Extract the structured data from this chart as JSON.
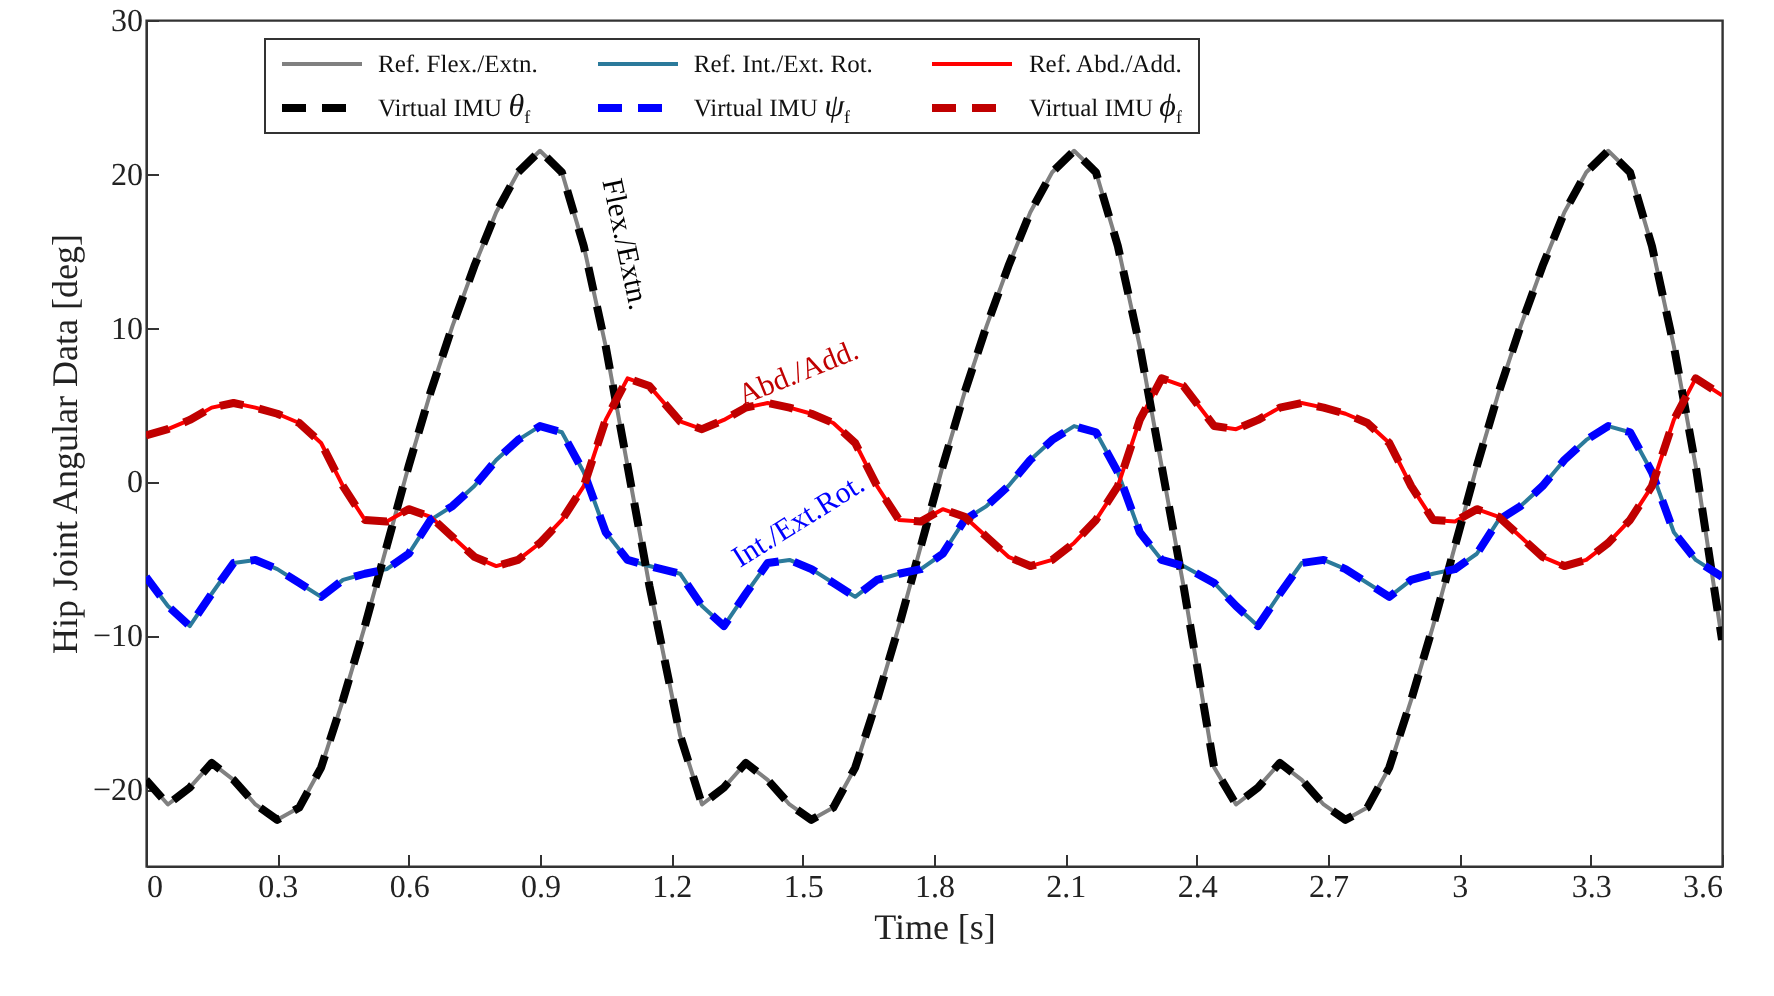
{
  "chart_data": {
    "type": "line",
    "xlabel": "Time [s]",
    "ylabel": "Hip Joint Angular Data [deg]",
    "x": [
      0,
      0.05,
      0.1,
      0.15,
      0.2,
      0.25,
      0.3,
      0.35,
      0.4,
      0.45,
      0.5,
      0.55,
      0.6,
      0.65,
      0.7,
      0.75,
      0.8,
      0.85,
      0.9,
      0.95,
      1.0,
      1.05,
      1.1,
      1.15,
      1.22,
      1.27,
      1.32,
      1.37,
      1.42,
      1.47,
      1.52,
      1.57,
      1.62,
      1.67,
      1.72,
      1.77,
      1.82,
      1.87,
      1.92,
      1.97,
      2.02,
      2.07,
      2.12,
      2.17,
      2.22,
      2.27,
      2.32,
      2.37,
      2.44,
      2.49,
      2.54,
      2.59,
      2.64,
      2.69,
      2.74,
      2.79,
      2.84,
      2.89,
      2.94,
      2.99,
      3.04,
      3.09,
      3.14,
      3.19,
      3.24,
      3.29,
      3.34,
      3.39,
      3.44,
      3.49,
      3.54,
      3.6
    ],
    "series": [
      {
        "name": "Ref. Flex./Extn.",
        "color": "#808080",
        "line_style": "solid",
        "values": [
          -19.4,
          -21,
          -19.9,
          -18.3,
          -19.4,
          -21,
          -22,
          -21.2,
          -18.6,
          -14.2,
          -9.4,
          -4.2,
          1.0,
          5.8,
          10.1,
          14,
          17.5,
          20.1,
          21.5,
          20.1,
          15.3,
          8.8,
          1.0,
          -6.8,
          -16.5,
          -21,
          -19.9,
          -18.3,
          -19.4,
          -21,
          -22,
          -21.2,
          -18.6,
          -14.2,
          -9.4,
          -4.2,
          1.0,
          5.8,
          10.1,
          14,
          17.5,
          20.1,
          21.5,
          20.1,
          15.3,
          8.8,
          1.0,
          -6.8,
          -18.6,
          -21,
          -19.9,
          -18.3,
          -19.4,
          -21,
          -22,
          -21.2,
          -18.6,
          -14.2,
          -9.4,
          -4.2,
          1.0,
          5.8,
          10.1,
          14,
          17.5,
          20.1,
          21.5,
          20.1,
          15.3,
          8.8,
          1.0,
          -10.3
        ]
      },
      {
        "name": "Ref. Int./Ext. Rot.",
        "color": "#2b7a9b",
        "line_style": "solid",
        "values": [
          -6.2,
          -8.1,
          -9.4,
          -7.3,
          -5.3,
          -5.1,
          -5.7,
          -6.6,
          -7.5,
          -6.4,
          -6.0,
          -5.7,
          -4.7,
          -2.5,
          -1.6,
          -0.3,
          1.4,
          2.7,
          3.6,
          3.2,
          0.6,
          -3.3,
          -5.1,
          -5.5,
          -6.0,
          -8.1,
          -9.4,
          -7.3,
          -5.3,
          -5.1,
          -5.7,
          -6.6,
          -7.5,
          -6.4,
          -6.0,
          -5.7,
          -4.7,
          -2.5,
          -1.6,
          -0.3,
          1.4,
          2.7,
          3.6,
          3.2,
          0.6,
          -3.3,
          -5.1,
          -5.5,
          -6.6,
          -8.1,
          -9.4,
          -7.3,
          -5.3,
          -5.1,
          -5.7,
          -6.6,
          -7.5,
          -6.4,
          -6.0,
          -5.7,
          -4.7,
          -2.5,
          -1.6,
          -0.3,
          1.4,
          2.7,
          3.6,
          3.2,
          0.6,
          -3.3,
          -5.1,
          -6.2
        ]
      },
      {
        "name": "Ref. Abd./Add.",
        "color": "#ff0000",
        "line_style": "solid",
        "values": [
          3.0,
          3.4,
          4.0,
          4.8,
          5.1,
          4.8,
          4.4,
          3.8,
          2.5,
          -0.3,
          -2.5,
          -2.6,
          -1.8,
          -2.3,
          -3.6,
          -4.9,
          -5.5,
          -5.1,
          -4.0,
          -2.5,
          -0.3,
          4.0,
          6.7,
          6.2,
          3.9,
          3.4,
          4.0,
          4.8,
          5.1,
          4.8,
          4.4,
          3.8,
          2.5,
          -0.3,
          -2.5,
          -2.6,
          -1.8,
          -2.3,
          -3.6,
          -4.9,
          -5.5,
          -5.1,
          -4.0,
          -2.5,
          -0.3,
          4.0,
          6.7,
          6.2,
          3.6,
          3.4,
          4.0,
          4.8,
          5.1,
          4.8,
          4.4,
          3.8,
          2.5,
          -0.3,
          -2.5,
          -2.6,
          -1.8,
          -2.3,
          -3.6,
          -4.9,
          -5.5,
          -5.1,
          -4.0,
          -2.5,
          -0.3,
          4.0,
          6.7,
          5.6
        ]
      },
      {
        "name": "Virtual IMU θ$_{f}$",
        "color": "#000000",
        "line_style": "dashed",
        "values": [
          -19.4,
          -21,
          -19.9,
          -18.3,
          -19.4,
          -21,
          -22,
          -21.2,
          -18.6,
          -14.2,
          -9.4,
          -4.2,
          1.0,
          5.8,
          10.1,
          14,
          17.5,
          20.1,
          21.5,
          20.1,
          15.3,
          8.8,
          1.0,
          -6.8,
          -16.5,
          -21,
          -19.9,
          -18.3,
          -19.4,
          -21,
          -22,
          -21.2,
          -18.6,
          -14.2,
          -9.4,
          -4.2,
          1.0,
          5.8,
          10.1,
          14,
          17.5,
          20.1,
          21.5,
          20.1,
          15.3,
          8.8,
          1.0,
          -6.8,
          -18.6,
          -21,
          -19.9,
          -18.3,
          -19.4,
          -21,
          -22,
          -21.2,
          -18.6,
          -14.2,
          -9.4,
          -4.2,
          1.0,
          5.8,
          10.1,
          14,
          17.5,
          20.1,
          21.5,
          20.1,
          15.3,
          8.8,
          1.0,
          -10.3
        ]
      },
      {
        "name": "Virtual IMU ψ$_{f}$",
        "color": "#0000ff",
        "line_style": "dashed",
        "values": [
          -6.2,
          -8.1,
          -9.4,
          -7.3,
          -5.3,
          -5.1,
          -5.7,
          -6.6,
          -7.5,
          -6.4,
          -6.0,
          -5.7,
          -4.7,
          -2.5,
          -1.6,
          -0.3,
          1.4,
          2.7,
          3.6,
          3.2,
          0.6,
          -3.3,
          -5.1,
          -5.5,
          -6.0,
          -8.1,
          -9.4,
          -7.3,
          -5.3,
          -5.1,
          -5.7,
          -6.6,
          -7.5,
          -6.4,
          -6.0,
          -5.7,
          -4.7,
          -2.5,
          -1.6,
          -0.3,
          1.4,
          2.7,
          3.6,
          3.2,
          0.6,
          -3.3,
          -5.1,
          -5.5,
          -6.6,
          -8.1,
          -9.4,
          -7.3,
          -5.3,
          -5.1,
          -5.7,
          -6.6,
          -7.5,
          -6.4,
          -6.0,
          -5.7,
          -4.7,
          -2.5,
          -1.6,
          -0.3,
          1.4,
          2.7,
          3.6,
          3.2,
          0.6,
          -3.3,
          -5.1,
          -6.2
        ]
      },
      {
        "name": "Virtual IMU ϕ$_{f}$",
        "color": "#c00000",
        "line_style": "dashed",
        "values": [
          3.0,
          3.4,
          4.0,
          4.8,
          5.1,
          4.8,
          4.4,
          3.8,
          2.5,
          -0.3,
          -2.5,
          -2.6,
          -1.8,
          -2.3,
          -3.6,
          -4.9,
          -5.5,
          -5.1,
          -4.0,
          -2.5,
          -0.3,
          4.0,
          6.7,
          6.2,
          3.9,
          3.4,
          4.0,
          4.8,
          5.1,
          4.8,
          4.4,
          3.8,
          2.5,
          -0.3,
          -2.5,
          -2.6,
          -1.8,
          -2.3,
          -3.6,
          -4.9,
          -5.5,
          -5.1,
          -4.0,
          -2.5,
          -0.3,
          4.0,
          6.7,
          6.2,
          3.6,
          3.4,
          4.0,
          4.8,
          5.1,
          4.8,
          4.4,
          3.8,
          2.5,
          -0.3,
          -2.5,
          -2.6,
          -1.8,
          -2.3,
          -3.6,
          -4.9,
          -5.5,
          -5.1,
          -4.0,
          -2.5,
          -0.3,
          4.0,
          6.7,
          5.6
        ]
      }
    ],
    "annotations": [
      "Flex./Extn.",
      "Int./Ext.Rot.",
      "Abd./Add."
    ],
    "xlim": [
      0,
      3.6
    ],
    "xticks": [
      0,
      0.3,
      0.6,
      0.9,
      1.2,
      1.5,
      1.8,
      2.1,
      2.4,
      2.7,
      3,
      3.3,
      3.6
    ],
    "ylim": [
      -25,
      30
    ],
    "yticks": [
      -20,
      -10,
      0,
      10,
      20,
      30
    ],
    "legend": "top",
    "grid": false
  }
}
